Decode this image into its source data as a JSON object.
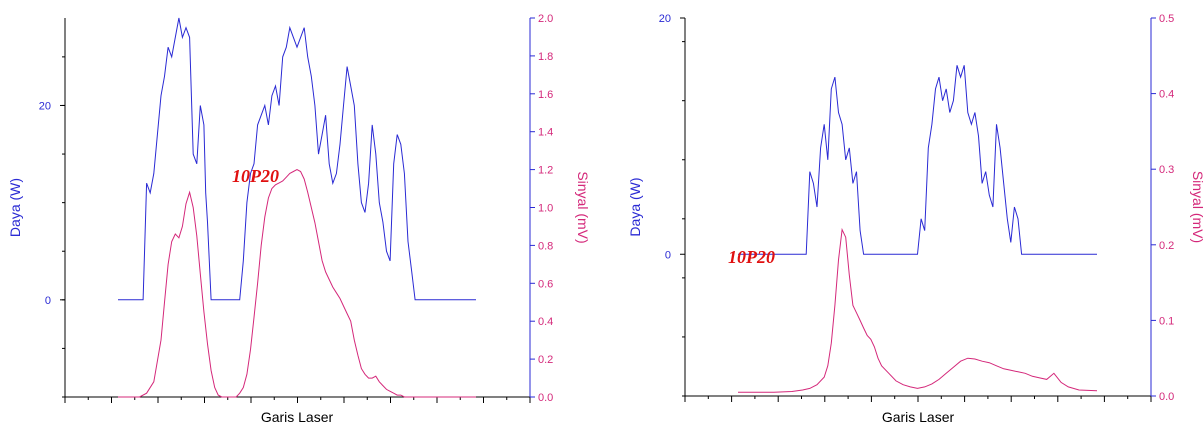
{
  "colors": {
    "blue": "#2a2ad4",
    "magenta": "#d4287a",
    "annotation": "#e01010",
    "axis": "#000000"
  },
  "chart_data": [
    {
      "type": "line",
      "xlabel": "Garis Laser",
      "ylabel_left": "Daya (W)",
      "ylabel_right": "Sinyal (mV)",
      "annotation": "10P20",
      "x_tick_count": 10,
      "y_left_range": [
        -10,
        29
      ],
      "y_left_ticks": [
        {
          "v": 0,
          "label": "0"
        },
        {
          "v": 20,
          "label": "20"
        }
      ],
      "y_right_range": [
        0.0,
        2.0
      ],
      "y_right_ticks": [
        {
          "v": 0.0,
          "label": "0.0"
        },
        {
          "v": 0.2,
          "label": "0.2"
        },
        {
          "v": 0.4,
          "label": "0.4"
        },
        {
          "v": 0.6,
          "label": "0.6"
        },
        {
          "v": 0.8,
          "label": "0.8"
        },
        {
          "v": 1.0,
          "label": "1.0"
        },
        {
          "v": 1.2,
          "label": "1.2"
        },
        {
          "v": 1.4,
          "label": "1.4"
        },
        {
          "v": 1.6,
          "label": "1.6"
        },
        {
          "v": 1.8,
          "label": "1.8"
        },
        {
          "v": 2.0,
          "label": "2.0"
        }
      ],
      "series": [
        {
          "color": "blue",
          "axis": "left",
          "x": [
            0.0,
            0.07,
            0.08,
            0.09,
            0.1,
            0.11,
            0.12,
            0.13,
            0.14,
            0.15,
            0.16,
            0.17,
            0.18,
            0.19,
            0.2,
            0.21,
            0.22,
            0.23,
            0.24,
            0.245,
            0.25,
            0.26,
            0.27,
            0.28,
            0.29,
            0.3,
            0.31,
            0.32,
            0.33,
            0.34,
            0.35,
            0.36,
            0.37,
            0.38,
            0.39,
            0.4,
            0.41,
            0.42,
            0.43,
            0.44,
            0.45,
            0.46,
            0.47,
            0.48,
            0.49,
            0.5,
            0.51,
            0.52,
            0.53,
            0.54,
            0.55,
            0.56,
            0.57,
            0.58,
            0.59,
            0.6,
            0.61,
            0.62,
            0.63,
            0.64,
            0.65,
            0.66,
            0.67,
            0.68,
            0.69,
            0.7,
            0.71,
            0.72,
            0.73,
            0.74,
            0.75,
            0.76,
            0.77,
            0.78,
            0.79,
            0.8,
            0.81,
            0.82,
            0.83,
            0.84,
            0.85,
            0.86,
            0.87,
            0.88,
            0.89,
            0.9,
            1.0
          ],
          "y": [
            0,
            0,
            12,
            11,
            13,
            17,
            21,
            23,
            26,
            25,
            27,
            29,
            27,
            28,
            27,
            15,
            14,
            20,
            18,
            11,
            8,
            0,
            0,
            0,
            0,
            0,
            0,
            0,
            0,
            0,
            4,
            10,
            13,
            14,
            18,
            19,
            20,
            18,
            21,
            22,
            20,
            25,
            26,
            28,
            27,
            26,
            27,
            28,
            25,
            23,
            20,
            15,
            17,
            19,
            14,
            12,
            13,
            16,
            20,
            24,
            22,
            20,
            14,
            10,
            9,
            12,
            18,
            15,
            10,
            8,
            5,
            4,
            14,
            17,
            16,
            13,
            6,
            3,
            0,
            0,
            0,
            0,
            0,
            0,
            0,
            0,
            0
          ]
        },
        {
          "color": "magenta",
          "axis": "right",
          "x": [
            0.0,
            0.02,
            0.04,
            0.06,
            0.08,
            0.1,
            0.12,
            0.13,
            0.14,
            0.15,
            0.16,
            0.17,
            0.18,
            0.19,
            0.2,
            0.21,
            0.22,
            0.23,
            0.24,
            0.25,
            0.26,
            0.27,
            0.28,
            0.29,
            0.3,
            0.31,
            0.32,
            0.33,
            0.34,
            0.35,
            0.36,
            0.37,
            0.38,
            0.39,
            0.4,
            0.41,
            0.42,
            0.43,
            0.44,
            0.45,
            0.46,
            0.47,
            0.48,
            0.49,
            0.5,
            0.51,
            0.52,
            0.53,
            0.54,
            0.55,
            0.56,
            0.57,
            0.58,
            0.59,
            0.6,
            0.61,
            0.62,
            0.63,
            0.64,
            0.65,
            0.66,
            0.67,
            0.68,
            0.69,
            0.7,
            0.71,
            0.72,
            0.73,
            0.74,
            0.75,
            0.76,
            0.77,
            0.78,
            0.79,
            0.8,
            0.82,
            0.84,
            0.86,
            0.88,
            0.9,
            1.0
          ],
          "y": [
            0,
            0,
            0,
            0,
            0.02,
            0.08,
            0.3,
            0.5,
            0.7,
            0.82,
            0.86,
            0.84,
            0.9,
            1.02,
            1.08,
            1.0,
            0.85,
            0.65,
            0.45,
            0.28,
            0.14,
            0.05,
            0.01,
            0,
            0,
            0,
            0,
            0,
            0.02,
            0.05,
            0.12,
            0.25,
            0.42,
            0.6,
            0.8,
            0.95,
            1.05,
            1.1,
            1.12,
            1.13,
            1.14,
            1.16,
            1.18,
            1.19,
            1.2,
            1.19,
            1.15,
            1.08,
            1.0,
            0.92,
            0.82,
            0.72,
            0.66,
            0.62,
            0.58,
            0.55,
            0.52,
            0.48,
            0.44,
            0.4,
            0.3,
            0.22,
            0.15,
            0.12,
            0.1,
            0.1,
            0.11,
            0.08,
            0.06,
            0.04,
            0.03,
            0.02,
            0.01,
            0.01,
            0,
            0,
            0,
            0,
            0,
            0,
            0
          ]
        }
      ]
    },
    {
      "type": "line",
      "xlabel": "Garis Laser",
      "ylabel_left": "Daya (W)",
      "ylabel_right": "Sinyal (mV)",
      "annotation": "10P20",
      "x_tick_count": 10,
      "y_left_range": [
        -12,
        20
      ],
      "y_left_ticks": [
        {
          "v": 0,
          "label": "0"
        },
        {
          "v": 20,
          "label": "20"
        }
      ],
      "y_right_range": [
        0.0,
        0.5
      ],
      "y_right_ticks": [
        {
          "v": 0.0,
          "label": "0.0"
        },
        {
          "v": 0.1,
          "label": "0.1"
        },
        {
          "v": 0.2,
          "label": "0.2"
        },
        {
          "v": 0.3,
          "label": "0.3"
        },
        {
          "v": 0.4,
          "label": "0.4"
        },
        {
          "v": 0.5,
          "label": "0.5"
        }
      ],
      "series": [
        {
          "color": "blue",
          "axis": "left",
          "x": [
            0.0,
            0.19,
            0.2,
            0.21,
            0.22,
            0.23,
            0.24,
            0.25,
            0.26,
            0.27,
            0.28,
            0.29,
            0.3,
            0.31,
            0.32,
            0.33,
            0.34,
            0.35,
            0.36,
            0.37,
            0.38,
            0.39,
            0.4,
            0.41,
            0.42,
            0.43,
            0.44,
            0.5,
            0.51,
            0.52,
            0.53,
            0.54,
            0.55,
            0.56,
            0.57,
            0.58,
            0.59,
            0.6,
            0.61,
            0.62,
            0.63,
            0.64,
            0.65,
            0.66,
            0.67,
            0.68,
            0.69,
            0.7,
            0.71,
            0.72,
            0.73,
            0.74,
            0.75,
            0.76,
            0.77,
            0.78,
            0.79,
            0.8,
            0.81,
            0.82,
            1.0
          ],
          "y": [
            0,
            0,
            7,
            6,
            4,
            9,
            11,
            8,
            14,
            15,
            12,
            11,
            8,
            9,
            6,
            7,
            2,
            0,
            0,
            0,
            0,
            0,
            0,
            0,
            0,
            0,
            0,
            0,
            3,
            2,
            9,
            11,
            14,
            15,
            13,
            14,
            12,
            13,
            16,
            15,
            16,
            12,
            11,
            12,
            10,
            6,
            7,
            5,
            4,
            11,
            9,
            6,
            3,
            1,
            4,
            3,
            0,
            0,
            0,
            0,
            0
          ]
        },
        {
          "color": "magenta",
          "axis": "right",
          "x": [
            0.0,
            0.1,
            0.15,
            0.18,
            0.2,
            0.22,
            0.24,
            0.25,
            0.26,
            0.27,
            0.28,
            0.29,
            0.3,
            0.31,
            0.32,
            0.33,
            0.34,
            0.35,
            0.36,
            0.37,
            0.38,
            0.39,
            0.4,
            0.42,
            0.44,
            0.46,
            0.48,
            0.5,
            0.52,
            0.54,
            0.56,
            0.58,
            0.6,
            0.62,
            0.64,
            0.66,
            0.68,
            0.7,
            0.72,
            0.74,
            0.76,
            0.78,
            0.8,
            0.82,
            0.84,
            0.86,
            0.88,
            0.9,
            0.92,
            0.95,
            1.0
          ],
          "y": [
            0.005,
            0.005,
            0.006,
            0.008,
            0.01,
            0.015,
            0.025,
            0.04,
            0.07,
            0.12,
            0.18,
            0.22,
            0.21,
            0.16,
            0.12,
            0.11,
            0.1,
            0.09,
            0.08,
            0.075,
            0.065,
            0.05,
            0.04,
            0.03,
            0.02,
            0.015,
            0.012,
            0.01,
            0.012,
            0.016,
            0.022,
            0.03,
            0.038,
            0.046,
            0.05,
            0.049,
            0.046,
            0.044,
            0.04,
            0.036,
            0.034,
            0.032,
            0.03,
            0.026,
            0.024,
            0.022,
            0.03,
            0.018,
            0.012,
            0.008,
            0.007
          ]
        }
      ]
    }
  ]
}
